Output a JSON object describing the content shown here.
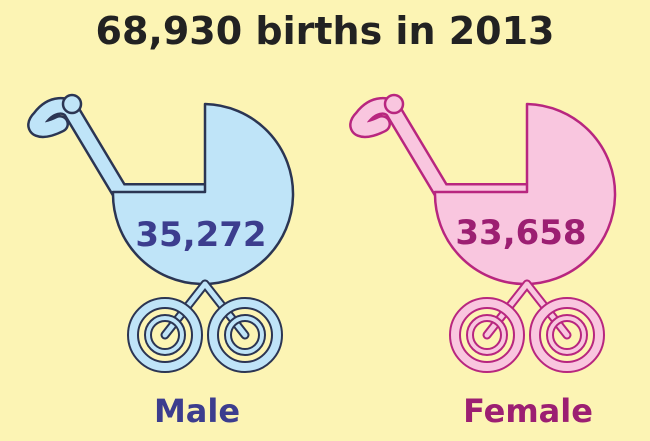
{
  "title": "68,930 births in 2013",
  "items": [
    {
      "label": "Male",
      "value": "35,272"
    },
    {
      "label": "Female",
      "value": "33,658"
    }
  ]
}
